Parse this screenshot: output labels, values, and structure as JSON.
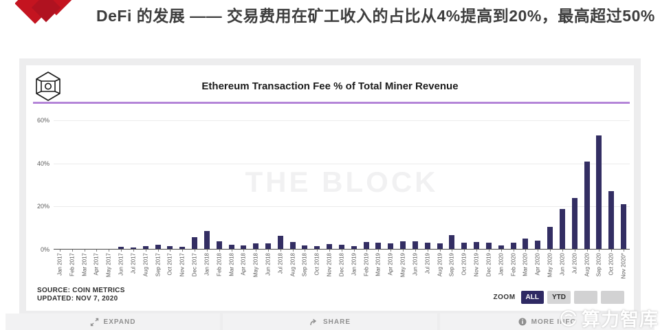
{
  "page_header": {
    "title": "DeFi 的发展 —— 交易费用在矿工收入的占比从4%提高到20%，最高超过50%",
    "logo_color": "#c41420"
  },
  "card": {
    "title": "Ethereum Transaction Fee % of Total Miner Revenue",
    "watermark": "THE BLOCK",
    "source_line1": "SOURCE: COIN METRICS",
    "source_line2": "UPDATED: NOV 7, 2020",
    "zoom_label": "ZOOM",
    "zoom_buttons": [
      {
        "label": "ALL",
        "active": true
      },
      {
        "label": "YTD",
        "active": false
      },
      {
        "label": "",
        "active": false
      },
      {
        "label": "",
        "active": false
      }
    ],
    "accent_rule_color": "#b485d8",
    "bar_color": "#332e63"
  },
  "chart_data": {
    "type": "bar",
    "title": "Ethereum Transaction Fee % of Total Miner Revenue",
    "categories": [
      "Jan 2017",
      "Feb 2017",
      "Mar 2017",
      "Apr 2017",
      "May 2017",
      "Jun 2017",
      "Jul 2017",
      "Aug 2017",
      "Sep 2017",
      "Oct 2017",
      "Nov 2017",
      "Dec 2017",
      "Jan 2018",
      "Feb 2018",
      "Mar 2018",
      "Apr 2018",
      "May 2018",
      "Jun 2018",
      "Jul 2018",
      "Aug 2018",
      "Sep 2018",
      "Oct 2018",
      "Nov 2018",
      "Dec 2018",
      "Jan 2019",
      "Feb 2019",
      "Mar 2019",
      "Apr 2019",
      "May 2019",
      "Jun 2019",
      "Jul 2019",
      "Aug 2019",
      "Sep 2019",
      "Oct 2019",
      "Nov 2019",
      "Dec 2019",
      "Jan 2020",
      "Feb 2020",
      "Mar 2020",
      "Apr 2020",
      "May 2020",
      "Jun 2020",
      "Jul 2020",
      "Aug 2020",
      "Sep 2020",
      "Oct 2020",
      "Nov 2020*"
    ],
    "values": [
      0.1,
      0.2,
      0.2,
      0.2,
      0.4,
      1.3,
      0.9,
      1.7,
      2.1,
      1.7,
      1.3,
      5.9,
      8.5,
      3.7,
      2.2,
      1.9,
      3.0,
      2.8,
      6.5,
      3.5,
      1.9,
      1.6,
      2.4,
      2.1,
      1.7,
      3.5,
      3.3,
      2.8,
      3.8,
      3.8,
      3.2,
      3.0,
      6.7,
      3.3,
      3.5,
      3.2,
      2.0,
      3.1,
      5.2,
      4.0,
      10.4,
      18.7,
      24.0,
      41.0,
      53.0,
      27.0,
      21.0
    ],
    "xlabel": "",
    "ylabel": "",
    "ylim": [
      0,
      68
    ],
    "yticks": [
      0,
      20,
      40,
      60
    ],
    "ytick_labels": [
      "0%",
      "20%",
      "40%",
      "60%"
    ],
    "grid": true,
    "legend": false,
    "bar_color": "#332e63"
  },
  "footer": {
    "items": [
      {
        "icon": "expand-icon",
        "label": "EXPAND"
      },
      {
        "icon": "share-icon",
        "label": "SHARE"
      },
      {
        "icon": "info-icon",
        "label": "MORE INFO"
      }
    ]
  },
  "brand": {
    "text": "算力智库"
  }
}
